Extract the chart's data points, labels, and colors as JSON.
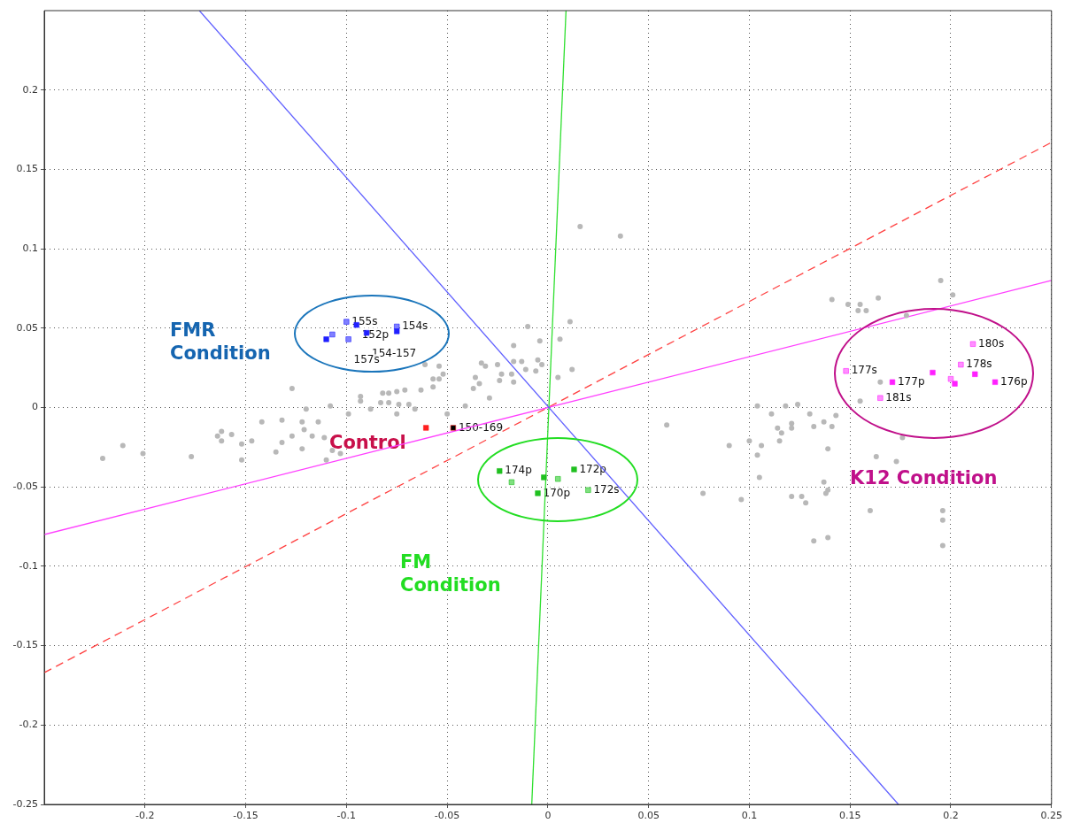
{
  "chart_data": {
    "type": "scatter",
    "xlim": [
      -0.25,
      0.25
    ],
    "ylim": [
      -0.25,
      0.25
    ],
    "xticks": [
      -0.2,
      -0.15,
      -0.1,
      -0.05,
      0,
      0.05,
      0.1,
      0.15,
      0.2,
      0.25
    ],
    "yticks": [
      -0.25,
      -0.2,
      -0.15,
      -0.1,
      -0.05,
      0,
      0.05,
      0.1,
      0.15,
      0.2
    ],
    "grid": true,
    "annotations": [
      "FMR\nCondition",
      "Control",
      "FM\nCondition",
      "K12 Condition",
      {
        "text": "155s",
        "x": -0.1,
        "y": 0.054
      },
      {
        "text": "152p",
        "x": -0.095,
        "y": 0.052
      },
      {
        "text": "154s",
        "x": -0.075,
        "y": 0.051
      },
      {
        "text": "154-157",
        "x": -0.09,
        "y": 0.047
      },
      {
        "text": "157s",
        "x": -0.099,
        "y": 0.043
      },
      {
        "text": "150-169",
        "x": -0.047,
        "y": -0.0128
      },
      {
        "text": "174p",
        "x": -0.024,
        "y": -0.04
      },
      {
        "text": "170p",
        "x": -0.005,
        "y": -0.054
      },
      {
        "text": "172p",
        "x": 0.013,
        "y": -0.039
      },
      {
        "text": "172s",
        "x": 0.02,
        "y": -0.052
      },
      {
        "text": "177s",
        "x": 0.148,
        "y": 0.023
      },
      {
        "text": "177p",
        "x": 0.171,
        "y": 0.016
      },
      {
        "text": "181s",
        "x": 0.165,
        "y": 0.006
      },
      {
        "text": "180s",
        "x": 0.211,
        "y": 0.04
      },
      {
        "text": "178s",
        "x": 0.205,
        "y": 0.027
      },
      {
        "text": "176p",
        "x": 0.222,
        "y": 0.016
      }
    ],
    "series": [
      {
        "type": "line",
        "color": "#6060ff",
        "line_style": "solid",
        "x": [
          -0.173,
          0.174
        ],
        "values": [
          0.25,
          -0.25
        ]
      },
      {
        "type": "line",
        "color": "#30e030",
        "line_style": "solid",
        "x": [
          0.009,
          -0.008
        ],
        "values": [
          0.25,
          -0.25
        ]
      },
      {
        "type": "line",
        "color": "#ff40ff",
        "line_style": "solid",
        "x": [
          -0.25,
          0.25
        ],
        "values": [
          -0.08,
          0.08
        ]
      },
      {
        "type": "line",
        "color": "#ff4040",
        "line_style": "dashed",
        "x": [
          -0.25,
          0.25
        ],
        "values": [
          -0.167,
          0.167
        ]
      },
      {
        "color": "#b8b8b8",
        "marker": "circle",
        "x": [
          0.195,
          0.141,
          0.149,
          0.155,
          0.154,
          0.158,
          0.164,
          0.178,
          0.201,
          0.104,
          0.111,
          0.118,
          0.124,
          0.13,
          0.143,
          0.137,
          0.132,
          0.141,
          0.121,
          0.121,
          0.114,
          0.116,
          0.115,
          0.1,
          0.106,
          0.09,
          0.104,
          0.139,
          0.059,
          0.105,
          0.137,
          0.139,
          0.138,
          0.126,
          0.121,
          0.128,
          0.096,
          0.077,
          0.163,
          0.173,
          0.16,
          0.196,
          0.196,
          0.196,
          0.132,
          0.139,
          0.176,
          0.155,
          0.165,
          0.016,
          0.036,
          0.011,
          -0.01,
          -0.004,
          -0.017,
          0.006,
          -0.033,
          -0.031,
          -0.025,
          -0.017,
          -0.013,
          -0.005,
          -0.003,
          -0.011,
          -0.023,
          -0.018,
          -0.006,
          0.012,
          0.005,
          -0.024,
          -0.017,
          -0.221,
          -0.211,
          -0.201,
          -0.177,
          -0.164,
          -0.162,
          -0.157,
          -0.162,
          -0.152,
          -0.147,
          -0.152,
          -0.127,
          -0.142,
          -0.132,
          -0.122,
          -0.121,
          -0.127,
          -0.132,
          -0.135,
          -0.122,
          -0.117,
          -0.111,
          -0.107,
          -0.114,
          -0.108,
          -0.12,
          -0.099,
          -0.093,
          -0.093,
          -0.082,
          -0.079,
          -0.075,
          -0.071,
          -0.063,
          -0.057,
          -0.061,
          -0.054,
          -0.052,
          -0.054,
          -0.057,
          -0.036,
          -0.034,
          -0.037,
          -0.083,
          -0.079,
          -0.074,
          -0.069,
          -0.066,
          -0.075,
          -0.088,
          -0.05,
          -0.041,
          -0.029,
          -0.103,
          -0.11
        ],
        "values": [
          0.08,
          0.068,
          0.065,
          0.065,
          0.061,
          0.061,
          0.069,
          0.058,
          0.071,
          0.001,
          -0.004,
          0.001,
          0.002,
          -0.004,
          -0.005,
          -0.009,
          -0.012,
          -0.012,
          -0.01,
          -0.013,
          -0.013,
          -0.016,
          -0.021,
          -0.021,
          -0.024,
          -0.024,
          -0.03,
          -0.026,
          -0.011,
          -0.044,
          -0.047,
          -0.052,
          -0.054,
          -0.056,
          -0.056,
          -0.06,
          -0.058,
          -0.054,
          -0.031,
          -0.034,
          -0.065,
          -0.065,
          -0.071,
          -0.087,
          -0.084,
          -0.082,
          -0.019,
          0.004,
          0.016,
          0.114,
          0.108,
          0.054,
          0.051,
          0.042,
          0.039,
          0.043,
          0.028,
          0.026,
          0.027,
          0.029,
          0.029,
          0.03,
          0.027,
          0.024,
          0.021,
          0.021,
          0.023,
          0.024,
          0.019,
          0.017,
          0.016,
          -0.032,
          -0.024,
          -0.029,
          -0.031,
          -0.018,
          -0.015,
          -0.017,
          -0.021,
          -0.023,
          -0.021,
          -0.033,
          0.012,
          -0.009,
          -0.008,
          -0.009,
          -0.014,
          -0.018,
          -0.022,
          -0.028,
          -0.026,
          -0.018,
          -0.019,
          -0.027,
          -0.009,
          0.001,
          -0.001,
          -0.004,
          0.007,
          0.004,
          0.009,
          0.009,
          0.01,
          0.011,
          0.011,
          0.013,
          0.027,
          0.026,
          0.021,
          0.018,
          0.018,
          0.019,
          0.015,
          0.012,
          0.003,
          0.003,
          0.002,
          0.002,
          -0.001,
          -0.004,
          -0.001,
          -0.004,
          0.001,
          0.006,
          -0.029,
          -0.033
        ]
      },
      {
        "color": "#2020ff",
        "marker": "square",
        "colors": [
          "#8080ff",
          "#2020ff",
          "#8080ff",
          "#2020ff",
          "#2020ff",
          "#8080ff",
          "#8080ff",
          "#2020ff"
        ],
        "x": [
          -0.1,
          -0.095,
          -0.075,
          -0.075,
          -0.09,
          -0.099,
          -0.107,
          -0.11
        ],
        "values": [
          0.054,
          0.052,
          0.051,
          0.048,
          0.047,
          0.043,
          0.046,
          0.043
        ]
      },
      {
        "color": "#ff2020",
        "marker": "square",
        "colors": [
          "#ff2020",
          "#000000"
        ],
        "x": [
          -0.0605,
          -0.047
        ],
        "values": [
          -0.0128,
          -0.0128
        ]
      },
      {
        "color": "#20c020",
        "marker": "square",
        "colors": [
          "#20c020",
          "#80e080",
          "#20c020",
          "#20c020",
          "#80e080",
          "#20c020",
          "#80e080"
        ],
        "x": [
          -0.024,
          -0.018,
          -0.005,
          0.013,
          0.02,
          -0.002,
          0.005
        ],
        "values": [
          -0.04,
          -0.047,
          -0.054,
          -0.039,
          -0.052,
          -0.044,
          -0.045
        ]
      },
      {
        "color": "#ff20ff",
        "marker": "square",
        "colors": [
          "#ff90ff",
          "#ff20ff",
          "#ff90ff",
          "#ff20ff",
          "#ff90ff",
          "#ff90ff",
          "#ff20ff",
          "#ff20ff",
          "#ff20ff",
          "#ff90ff"
        ],
        "x": [
          0.148,
          0.171,
          0.165,
          0.191,
          0.211,
          0.205,
          0.202,
          0.212,
          0.222,
          0.2
        ],
        "values": [
          0.023,
          0.016,
          0.006,
          0.022,
          0.04,
          0.027,
          0.015,
          0.021,
          0.016,
          0.018
        ]
      }
    ]
  }
}
